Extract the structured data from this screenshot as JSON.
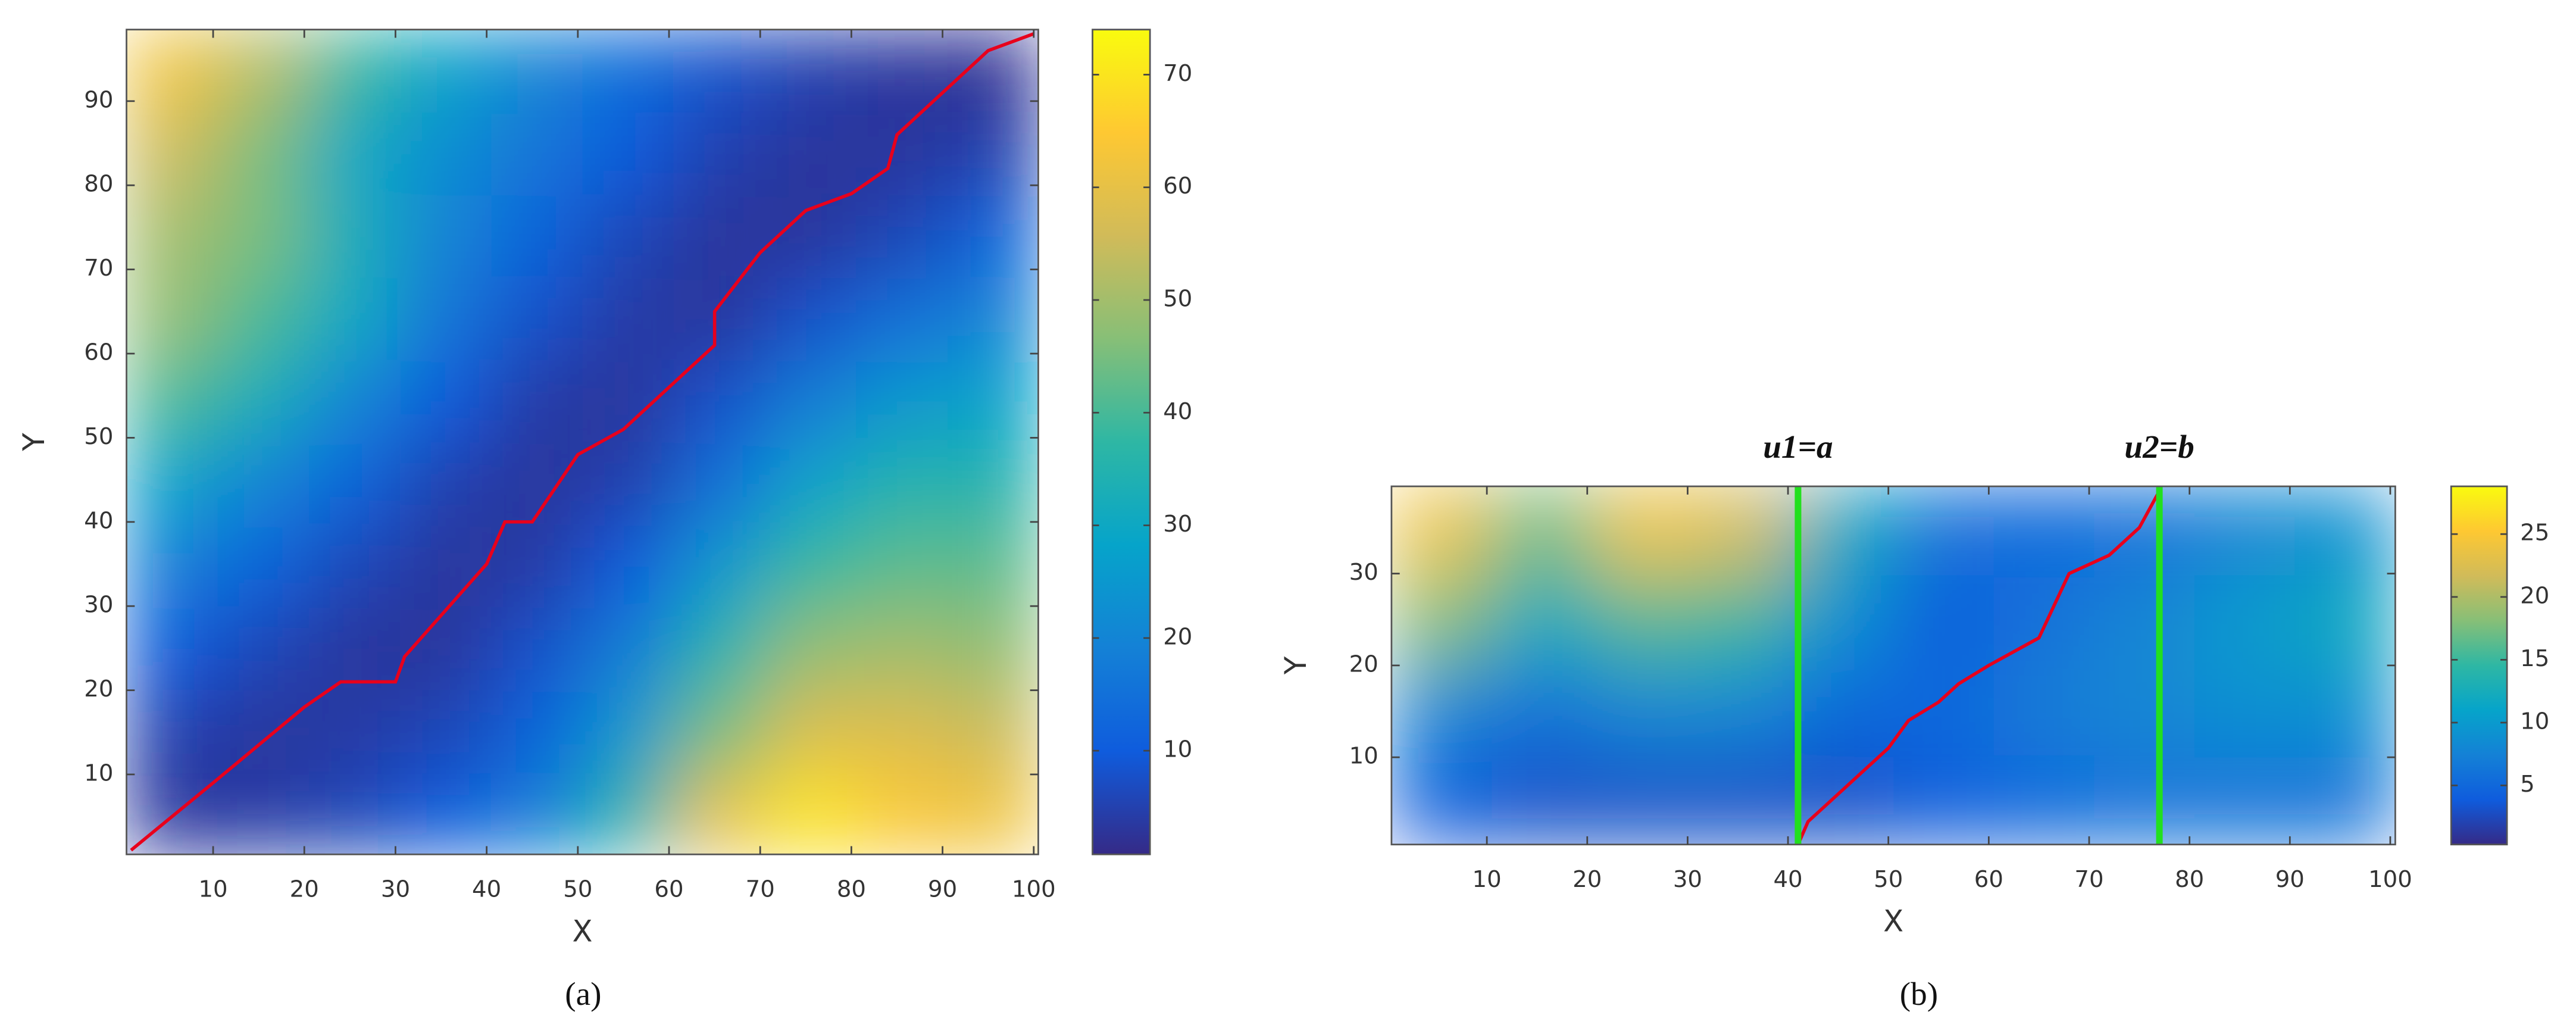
{
  "chart_data": [
    {
      "type": "heatmap",
      "caption": "(a)",
      "x_label": "X",
      "y_label": "Y",
      "xlim": [
        0.5,
        100.5
      ],
      "ylim": [
        0.5,
        98.5
      ],
      "xticks": [
        10,
        20,
        30,
        40,
        50,
        60,
        70,
        80,
        90,
        100
      ],
      "yticks": [
        10,
        20,
        30,
        40,
        50,
        60,
        70,
        80,
        90
      ],
      "clim": [
        0.8,
        74
      ],
      "cticks": [
        10,
        20,
        30,
        40,
        50,
        60,
        70
      ],
      "colormap": [
        "#352a87",
        "#0f5cdd",
        "#1481d6",
        "#06a4ca",
        "#2eb7a4",
        "#87bf77",
        "#d1bb59",
        "#fec832",
        "#f9fb0e"
      ],
      "z": [
        [
          3,
          4,
          6,
          10,
          18,
          35,
          60,
          70,
          64,
          62
        ],
        [
          5,
          3,
          4,
          6,
          12,
          25,
          45,
          58,
          58,
          55
        ],
        [
          10,
          6,
          3,
          3,
          8,
          18,
          35,
          48,
          50,
          48
        ],
        [
          18,
          12,
          6,
          3,
          4,
          10,
          25,
          38,
          42,
          42
        ],
        [
          28,
          20,
          12,
          5,
          3,
          5,
          15,
          28,
          35,
          35
        ],
        [
          40,
          32,
          20,
          10,
          4,
          3,
          8,
          18,
          25,
          28
        ],
        [
          48,
          40,
          30,
          16,
          8,
          4,
          3,
          8,
          15,
          20
        ],
        [
          50,
          45,
          32,
          20,
          12,
          6,
          3,
          3,
          6,
          12
        ],
        [
          55,
          45,
          30,
          22,
          16,
          10,
          5,
          3,
          3,
          5
        ],
        [
          62,
          52,
          38,
          28,
          20,
          14,
          8,
          5,
          3,
          2
        ]
      ],
      "path": {
        "color": "#e8001c",
        "x": [
          1,
          10,
          20,
          24,
          30,
          31,
          40,
          42,
          45,
          50,
          55,
          65,
          65,
          70,
          75,
          80,
          84,
          85,
          90,
          95,
          100
        ],
        "y": [
          1,
          9,
          18,
          21,
          21,
          24,
          35,
          40,
          40,
          48,
          51,
          61,
          65,
          72,
          77,
          79,
          82,
          86,
          91,
          96,
          98
        ]
      }
    },
    {
      "type": "heatmap",
      "caption": "(b)",
      "x_label": "X",
      "y_label": "Y",
      "xlim": [
        0.5,
        100.5
      ],
      "ylim": [
        0.5,
        39.5
      ],
      "xticks": [
        10,
        20,
        30,
        40,
        50,
        60,
        70,
        80,
        90,
        100
      ],
      "yticks": [
        10,
        20,
        30
      ],
      "clim": [
        0.3,
        28.8
      ],
      "cticks": [
        5,
        10,
        15,
        20,
        25
      ],
      "colormap": [
        "#352a87",
        "#0f5cdd",
        "#1481d6",
        "#06a4ca",
        "#2eb7a4",
        "#87bf77",
        "#d1bb59",
        "#fec832",
        "#f9fb0e"
      ],
      "z": [
        [
          4,
          3,
          3,
          3,
          3,
          4,
          5,
          6,
          6,
          6
        ],
        [
          8,
          6,
          8,
          8,
          5,
          5,
          7,
          8,
          9,
          9
        ],
        [
          18,
          12,
          16,
          15,
          9,
          4,
          6,
          8,
          10,
          12
        ],
        [
          24,
          17,
          24,
          22,
          12,
          6,
          5,
          6,
          8,
          9
        ]
      ],
      "path": {
        "color": "#e8001c",
        "x": [
          41,
          42,
          45,
          50,
          52,
          55,
          57,
          60,
          65,
          68,
          72,
          75,
          77
        ],
        "y": [
          0.5,
          3,
          6,
          11,
          14,
          16,
          18,
          20,
          23,
          30,
          32,
          35,
          39
        ]
      },
      "vlines": [
        {
          "x": 41,
          "label": "u1=a",
          "color": "#22e01e"
        },
        {
          "x": 77,
          "label": "u2=b",
          "color": "#22e01e"
        }
      ]
    }
  ]
}
